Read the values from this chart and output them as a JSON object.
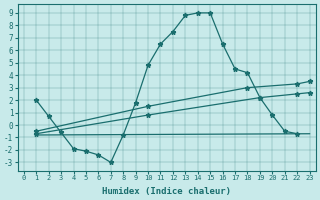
{
  "xlabel": "Humidex (Indice chaleur)",
  "bg_color": "#c8eaea",
  "line_color": "#1a6e6e",
  "xlim": [
    -0.5,
    23.5
  ],
  "ylim": [
    -3.7,
    9.7
  ],
  "xticks": [
    0,
    1,
    2,
    3,
    4,
    5,
    6,
    7,
    8,
    9,
    10,
    11,
    12,
    13,
    14,
    15,
    16,
    17,
    18,
    19,
    20,
    21,
    22,
    23
  ],
  "yticks": [
    -3,
    -2,
    -1,
    0,
    1,
    2,
    3,
    4,
    5,
    6,
    7,
    8,
    9
  ],
  "main_x": [
    1,
    2,
    3,
    4,
    5,
    6,
    7,
    8,
    9,
    10,
    11,
    12,
    13,
    14,
    15,
    16,
    17,
    18,
    19,
    20,
    21,
    22
  ],
  "main_y": [
    2.0,
    0.7,
    -0.6,
    -1.9,
    -2.1,
    -2.4,
    -3.0,
    -0.8,
    1.8,
    4.8,
    6.5,
    7.5,
    8.8,
    9.0,
    9.0,
    6.5,
    4.5,
    4.2,
    2.2,
    0.8,
    -0.5,
    -0.7
  ],
  "line1_x": [
    1,
    10,
    18,
    22,
    23
  ],
  "line1_y": [
    -0.5,
    1.5,
    3.0,
    3.3,
    3.5
  ],
  "line2_x": [
    1,
    10,
    19,
    22,
    23
  ],
  "line2_y": [
    -0.7,
    0.8,
    2.2,
    2.5,
    2.6
  ],
  "line3_x": [
    1,
    23
  ],
  "line3_y": [
    -0.8,
    -0.7
  ]
}
